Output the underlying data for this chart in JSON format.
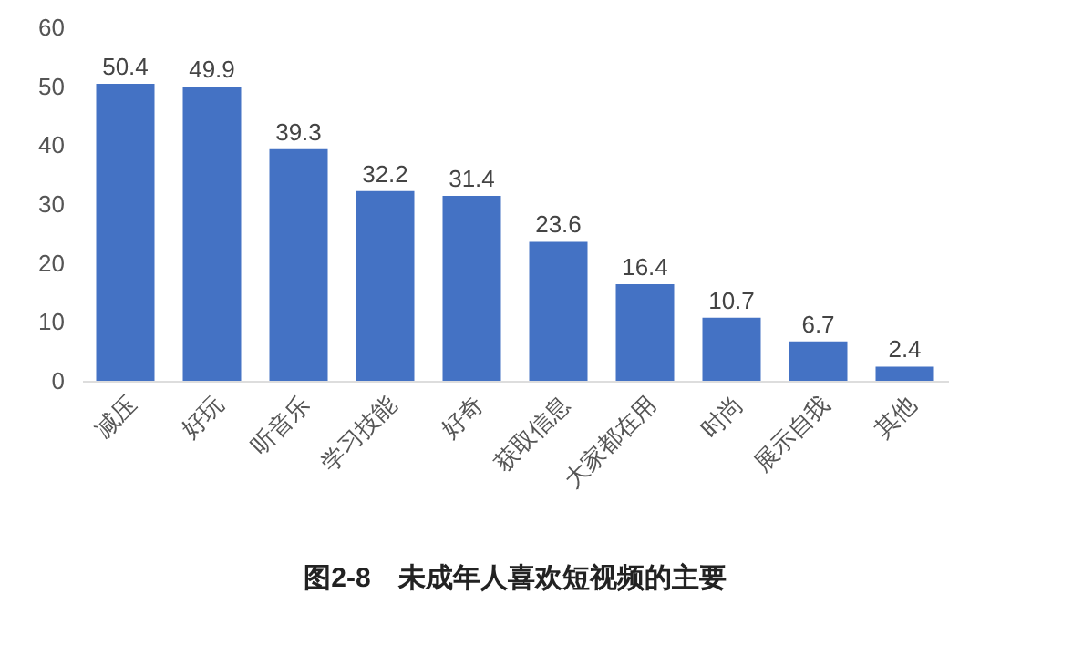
{
  "chart_data": {
    "type": "bar",
    "title": "图2-8　未成年人喜欢短视频的主要",
    "categories": [
      "减压",
      "好玩",
      "听音乐",
      "学习技能",
      "好奇",
      "获取信息",
      "大家都在用",
      "时尚",
      "展示自我",
      "其他"
    ],
    "values": [
      50.4,
      49.9,
      39.3,
      32.2,
      31.4,
      23.6,
      16.4,
      10.7,
      6.7,
      2.4
    ],
    "color": "#4472c4",
    "ylim": [
      0,
      60
    ],
    "yticks": [
      0,
      10,
      20,
      30,
      40,
      50,
      60
    ],
    "grid": false,
    "data_labels": true
  }
}
